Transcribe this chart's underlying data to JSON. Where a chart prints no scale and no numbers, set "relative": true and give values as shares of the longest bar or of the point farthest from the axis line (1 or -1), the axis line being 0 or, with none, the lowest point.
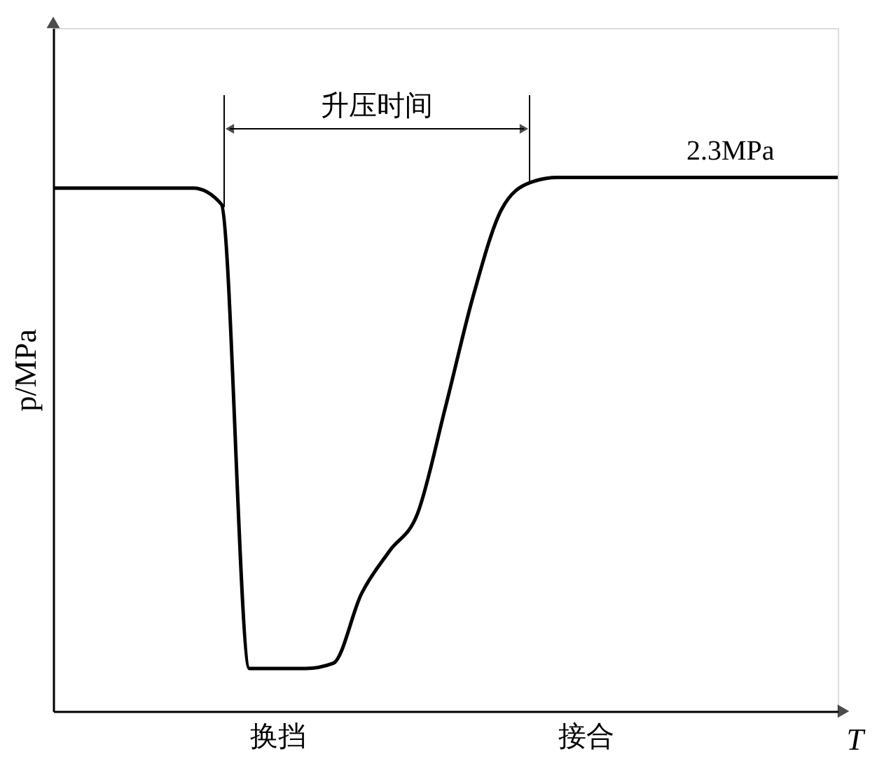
{
  "chart_data": {
    "type": "line",
    "relative": true,
    "xlabel": "T",
    "ylabel": "p/MPa",
    "tick_labels": "x",
    "categories": [
      null,
      null,
      null,
      null,
      null,
      null,
      null,
      null,
      "换挡",
      null,
      null,
      null,
      null,
      null,
      null,
      null,
      null,
      null,
      null,
      "接合",
      null,
      null,
      null,
      null,
      null,
      null,
      null,
      null,
      null
    ],
    "series": [
      {
        "color": "#000000",
        "values": [
          0.98,
          0.98,
          0.98,
          0.98,
          0.98,
          0.98,
          0.95,
          0.08,
          0.08,
          0.08,
          0.09,
          0.22,
          0.3,
          0.37,
          0.57,
          0.78,
          0.94,
          0.99,
          1,
          1,
          1,
          1,
          1,
          1,
          1,
          1,
          1,
          1,
          1
        ]
      }
    ],
    "annotations": [
      "升压时间",
      "2.3MPa"
    ]
  }
}
